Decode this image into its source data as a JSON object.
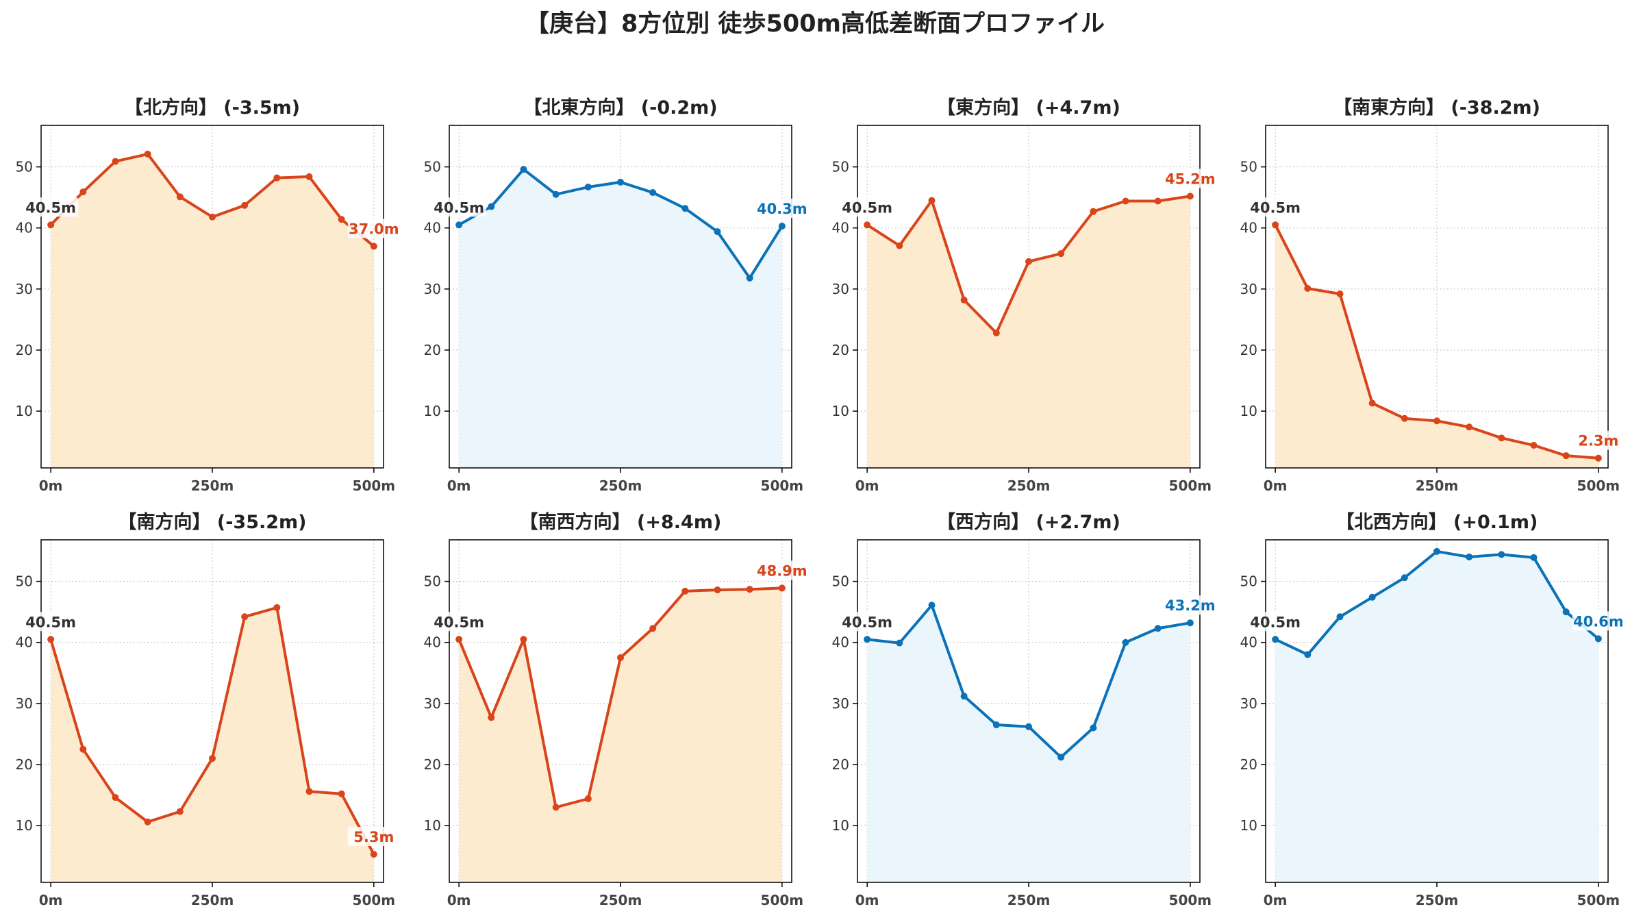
{
  "page": {
    "title": "【庚台】8方位別 徒歩500m高低差断面プロファイル"
  },
  "colors": {
    "up": "#d9441a",
    "up_fill": "#fdebd0",
    "flat": "#0b72b7",
    "flat_fill": "#eaf6fb",
    "start_label": "#333333",
    "axis": "#000000",
    "grid": "#b0b0b0"
  },
  "chart_data": [
    {
      "type": "area",
      "title": "【北方向】 (-3.5m)",
      "x": [
        0,
        50,
        100,
        150,
        200,
        250,
        300,
        350,
        400,
        450,
        500
      ],
      "y": [
        40.5,
        45.9,
        50.9,
        52.1,
        45.1,
        41.8,
        43.7,
        48.2,
        48.4,
        41.4,
        37.0
      ],
      "x_tick_labels": [
        "0m",
        "250m",
        "500m"
      ],
      "y_ticks": [
        10,
        20,
        30,
        40,
        50
      ],
      "ylim": [
        0.7,
        56.8
      ],
      "start_label": "40.5m",
      "end_label": "37.0m",
      "color_key": "up",
      "grid": true
    },
    {
      "type": "area",
      "title": "【北東方向】 (-0.2m)",
      "x": [
        0,
        50,
        100,
        150,
        200,
        250,
        300,
        350,
        400,
        450,
        500
      ],
      "y": [
        40.5,
        43.5,
        49.6,
        45.5,
        46.7,
        47.5,
        45.8,
        43.2,
        39.4,
        31.8,
        40.3
      ],
      "x_tick_labels": [
        "0m",
        "250m",
        "500m"
      ],
      "y_ticks": [
        10,
        20,
        30,
        40,
        50
      ],
      "ylim": [
        0.7,
        56.8
      ],
      "start_label": "40.5m",
      "end_label": "40.3m",
      "color_key": "flat",
      "grid": true
    },
    {
      "type": "area",
      "title": "【東方向】 (+4.7m)",
      "x": [
        0,
        50,
        100,
        150,
        200,
        250,
        300,
        350,
        400,
        450,
        500
      ],
      "y": [
        40.5,
        37.1,
        44.5,
        28.2,
        22.8,
        34.5,
        35.8,
        42.7,
        44.4,
        44.4,
        45.2
      ],
      "x_tick_labels": [
        "0m",
        "250m",
        "500m"
      ],
      "y_ticks": [
        10,
        20,
        30,
        40,
        50
      ],
      "ylim": [
        0.7,
        56.8
      ],
      "start_label": "40.5m",
      "end_label": "45.2m",
      "color_key": "up",
      "grid": true
    },
    {
      "type": "area",
      "title": "【南東方向】 (-38.2m)",
      "x": [
        0,
        50,
        100,
        150,
        200,
        250,
        300,
        350,
        400,
        450,
        500
      ],
      "y": [
        40.5,
        30.1,
        29.2,
        11.3,
        8.8,
        8.4,
        7.4,
        5.6,
        4.4,
        2.7,
        2.3
      ],
      "x_tick_labels": [
        "0m",
        "250m",
        "500m"
      ],
      "y_ticks": [
        10,
        20,
        30,
        40,
        50
      ],
      "ylim": [
        0.7,
        56.8
      ],
      "start_label": "40.5m",
      "end_label": "2.3m",
      "color_key": "up",
      "grid": true
    },
    {
      "type": "area",
      "title": "【南方向】 (-35.2m)",
      "x": [
        0,
        50,
        100,
        150,
        200,
        250,
        300,
        350,
        400,
        450,
        500
      ],
      "y": [
        40.5,
        22.5,
        14.6,
        10.6,
        12.3,
        21.0,
        44.2,
        45.7,
        15.6,
        15.2,
        5.3
      ],
      "x_tick_labels": [
        "0m",
        "250m",
        "500m"
      ],
      "y_ticks": [
        10,
        20,
        30,
        40,
        50
      ],
      "ylim": [
        0.7,
        56.8
      ],
      "start_label": "40.5m",
      "end_label": "5.3m",
      "color_key": "up",
      "grid": true
    },
    {
      "type": "area",
      "title": "【南西方向】 (+8.4m)",
      "x": [
        0,
        50,
        100,
        150,
        200,
        250,
        300,
        350,
        400,
        450,
        500
      ],
      "y": [
        40.5,
        27.7,
        40.5,
        13.0,
        14.4,
        37.5,
        42.3,
        48.4,
        48.6,
        48.7,
        48.9
      ],
      "x_tick_labels": [
        "0m",
        "250m",
        "500m"
      ],
      "y_ticks": [
        10,
        20,
        30,
        40,
        50
      ],
      "ylim": [
        0.7,
        56.8
      ],
      "start_label": "40.5m",
      "end_label": "48.9m",
      "color_key": "up",
      "grid": true
    },
    {
      "type": "area",
      "title": "【西方向】 (+2.7m)",
      "x": [
        0,
        50,
        100,
        150,
        200,
        250,
        300,
        350,
        400,
        450,
        500
      ],
      "y": [
        40.5,
        39.9,
        46.1,
        31.2,
        26.5,
        26.2,
        21.2,
        26.0,
        40.0,
        42.3,
        43.2
      ],
      "x_tick_labels": [
        "0m",
        "250m",
        "500m"
      ],
      "y_ticks": [
        10,
        20,
        30,
        40,
        50
      ],
      "ylim": [
        0.7,
        56.8
      ],
      "start_label": "40.5m",
      "end_label": "43.2m",
      "color_key": "flat",
      "grid": true
    },
    {
      "type": "area",
      "title": "【北西方向】 (+0.1m)",
      "x": [
        0,
        50,
        100,
        150,
        200,
        250,
        300,
        350,
        400,
        450,
        500
      ],
      "y": [
        40.5,
        38.0,
        44.2,
        47.4,
        50.6,
        54.9,
        54.0,
        54.4,
        53.9,
        45.0,
        40.6
      ],
      "x_tick_labels": [
        "0m",
        "250m",
        "500m"
      ],
      "y_ticks": [
        10,
        20,
        30,
        40,
        50
      ],
      "ylim": [
        0.7,
        56.8
      ],
      "start_label": "40.5m",
      "end_label": "40.6m",
      "color_key": "flat",
      "grid": true
    }
  ]
}
